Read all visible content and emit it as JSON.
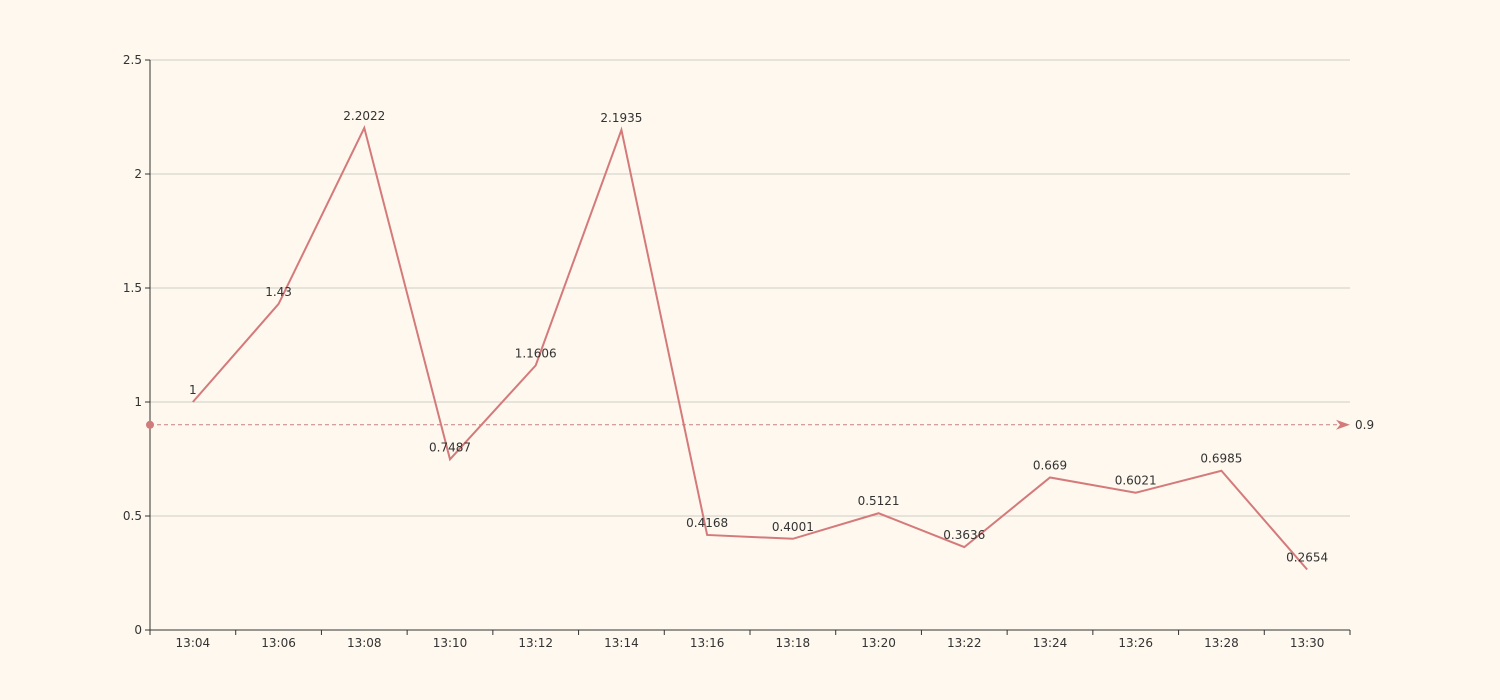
{
  "chart_data": {
    "type": "line",
    "categories": [
      "13:04",
      "13:06",
      "13:08",
      "13:10",
      "13:12",
      "13:14",
      "13:16",
      "13:18",
      "13:20",
      "13:22",
      "13:24",
      "13:26",
      "13:28",
      "13:30"
    ],
    "values": [
      1,
      1.43,
      2.2022,
      0.7487,
      1.1606,
      2.1935,
      0.4168,
      0.4001,
      0.5121,
      0.3636,
      0.669,
      0.6021,
      0.6985,
      0.2654
    ],
    "value_labels": [
      "1",
      "1.43",
      "2.2022",
      "0.7487",
      "1.1606",
      "2.1935",
      "0.4168",
      "0.4001",
      "0.5121",
      "0.3636",
      "0.669",
      "0.6021",
      "0.6985",
      "0.2654"
    ],
    "ylim": [
      0,
      2.5
    ],
    "y_ticks": [
      0,
      0.5,
      1,
      1.5,
      2,
      2.5
    ],
    "y_tick_labels": [
      "0",
      "0.5",
      "1",
      "1.5",
      "2",
      "2.5"
    ],
    "reference_line": {
      "value": 0.9,
      "label": "0.9",
      "style": "dashed"
    },
    "grid": true,
    "legend": "none"
  },
  "colors": {
    "background": "#fef8ef",
    "line": "#d47a7a",
    "axis": "#333333",
    "grid": "#cfcfc6",
    "text": "#333333",
    "reference_line": "#c68080"
  }
}
